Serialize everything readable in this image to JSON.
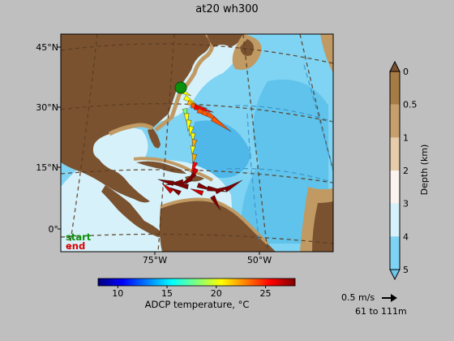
{
  "title": "at20 wh300",
  "map": {
    "lat_ticks": [
      "45°N",
      "30°N",
      "15°N",
      "0°"
    ],
    "lon_ticks": [
      "75°W",
      "50°W"
    ],
    "legend_start": "start",
    "legend_end": "end"
  },
  "colors": {
    "land": "#7b5230",
    "shelf": "#c19a63",
    "shallow": "#f2e6d6",
    "deep_light": "#d7f1fa",
    "deep_mid": "#8edbf5",
    "deep": "#6cc7ea",
    "start_marker": "#0c8f0c",
    "start_text": "#0c8f0c",
    "end_text": "#e00000"
  },
  "chart_data": [
    {
      "type": "map",
      "title": "at20 wh300",
      "projection": "lat/lon",
      "lon_ticks": [
        "75°W",
        "50°W"
      ],
      "lat_ticks": [
        "45°N",
        "30°N",
        "15°N",
        "0°"
      ],
      "start_point": {
        "lon": -76.5,
        "lat": 35
      },
      "vectors_layer": "61 to 111m",
      "legend": [
        "start",
        "end"
      ]
    },
    {
      "type": "colorbar",
      "label": "ADCP temperature, °C",
      "range": [
        8,
        28
      ],
      "ticks": [
        10,
        15,
        20,
        25
      ],
      "colormap": "jet"
    },
    {
      "type": "colorbar",
      "label": "Depth (km)",
      "ticks": [
        0,
        0.5,
        1,
        2,
        3,
        4,
        5
      ],
      "levels": [
        {
          "from": 0,
          "to": 0.5,
          "color": "#a67c45"
        },
        {
          "from": 0.5,
          "to": 1,
          "color": "#c79f6c"
        },
        {
          "from": 1,
          "to": 2,
          "color": "#e6ccaa"
        },
        {
          "from": 2,
          "to": 3,
          "color": "#fbf3ee"
        },
        {
          "from": 3,
          "to": 4,
          "color": "#d7f1fa"
        },
        {
          "from": 4,
          "to": 5,
          "color": "#7fd3f3"
        }
      ]
    }
  ],
  "scale": {
    "label": "0.5 m/s",
    "depth_range": "61 to 111m"
  }
}
